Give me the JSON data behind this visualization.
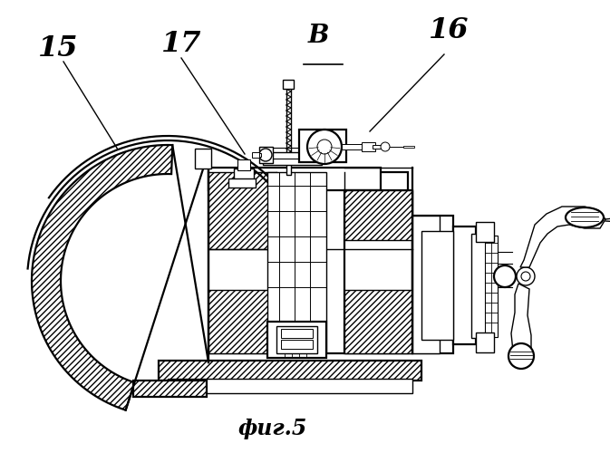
{
  "bg_color": "#ffffff",
  "figsize": [
    6.73,
    5.0
  ],
  "dpi": 100,
  "caption": "фиг.5",
  "lw": 1.0,
  "lw2": 1.6
}
